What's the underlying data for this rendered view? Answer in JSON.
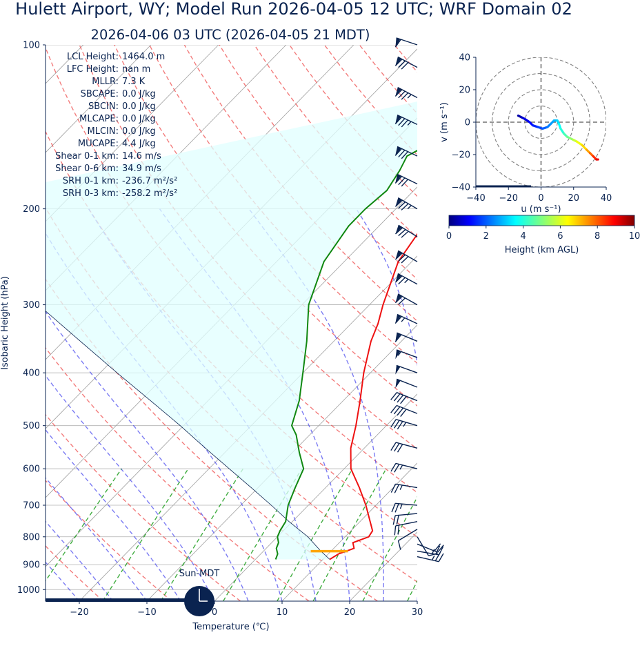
{
  "title": "Hulett Airport, WY; Model Run 2026-04-05 12 UTC; WRF Domain 02",
  "subtitle": "2026-04-06 03 UTC  (2026-04-05 21 MDT)",
  "colors": {
    "text": "#0a2350",
    "temperature": "#ee1111",
    "dewpoint": "#118811",
    "isotherm": "#a0a0a0",
    "dry_adiabat": "#ee4444",
    "moist_adiabat": "#4444ee",
    "mixing_ratio": "#119911",
    "cape_fill": "#e0ffff",
    "barb": "#0a2350",
    "lcl_marker": "#ffa500"
  },
  "indices": [
    {
      "label": "LCL Height:",
      "value": "1464.0 m"
    },
    {
      "label": "LFC Height:",
      "value": "nan m"
    },
    {
      "label": "MLLR:",
      "value": "7.3 K"
    },
    {
      "label": "SBCAPE:",
      "value": "0.0 J/kg"
    },
    {
      "label": "SBCIN:",
      "value": "0.0 J/kg"
    },
    {
      "label": "MLCAPE:",
      "value": "0.0 J/kg"
    },
    {
      "label": "MLCIN:",
      "value": "0.0 J/kg"
    },
    {
      "label": "MUCAPE:",
      "value": "4.4 J/kg"
    },
    {
      "label": "Shear 0-1 km:",
      "value": "14.6 m/s"
    },
    {
      "label": "Shear 0-6 km:",
      "value": "34.9 m/s"
    },
    {
      "label": "SRH 0-1 km:",
      "value": "-236.7 m²/s²"
    },
    {
      "label": "SRH 0-3 km:",
      "value": "-258.2 m²/s²"
    }
  ],
  "sun_label": "Sun-MDT",
  "sun_icon": "clock-icon",
  "chart_data": [
    {
      "type": "line",
      "kind": "skew-t",
      "xlabel": "Temperature (℃)",
      "ylabel": "Isobaric Height (hPa)",
      "xlim": [
        -25,
        30
      ],
      "ylim": [
        1050,
        100
      ],
      "x_ticks": [
        -20,
        -10,
        0,
        10,
        20,
        30
      ],
      "y_ticks": [
        100,
        200,
        300,
        400,
        500,
        600,
        700,
        800,
        900,
        1000
      ],
      "y_scale": "log",
      "grid": true,
      "series": [
        {
          "role": "temperature",
          "points": [
            [
              880,
              11.0
            ],
            [
              860,
              11.5
            ],
            [
              840,
              13.0
            ],
            [
              820,
              12.0
            ],
            [
              800,
              13.5
            ],
            [
              780,
              13.2
            ],
            [
              750,
              11.5
            ],
            [
              700,
              8.5
            ],
            [
              650,
              5.0
            ],
            [
              600,
              1.0
            ],
            [
              550,
              -2.0
            ],
            [
              500,
              -4.5
            ],
            [
              450,
              -7.5
            ],
            [
              400,
              -11.0
            ],
            [
              350,
              -14.5
            ],
            [
              325,
              -16.0
            ],
            [
              300,
              -18.0
            ],
            [
              250,
              -22.0
            ],
            [
              215,
              -23.5
            ],
            [
              200,
              -22.0
            ],
            [
              185,
              -20.5
            ],
            [
              165,
              -13.5
            ],
            [
              150,
              -7.0
            ],
            [
              140,
              0.0
            ],
            [
              125,
              10.0
            ],
            [
              113,
              15.0
            ],
            [
              100,
              17.0
            ]
          ]
        },
        {
          "role": "dewpoint",
          "points": [
            [
              880,
              3.0
            ],
            [
              860,
              2.5
            ],
            [
              840,
              1.5
            ],
            [
              820,
              1.0
            ],
            [
              800,
              0.0
            ],
            [
              780,
              -0.5
            ],
            [
              750,
              -1.0
            ],
            [
              700,
              -3.0
            ],
            [
              650,
              -4.5
            ],
            [
              600,
              -6.0
            ],
            [
              560,
              -9.0
            ],
            [
              520,
              -12.0
            ],
            [
              500,
              -14.0
            ],
            [
              450,
              -16.5
            ],
            [
              400,
              -20.0
            ],
            [
              350,
              -24.0
            ],
            [
              300,
              -29.0
            ],
            [
              250,
              -33.0
            ],
            [
              215,
              -34.5
            ],
            [
              200,
              -34.5
            ],
            [
              185,
              -34.0
            ],
            [
              170,
              -35.0
            ],
            [
              160,
              -36.0
            ],
            [
              150,
              -34.0
            ],
            [
              140,
              -30.0
            ],
            [
              125,
              -24.0
            ],
            [
              113,
              -18.0
            ],
            [
              100,
              -12.0
            ]
          ]
        },
        {
          "role": "parcel",
          "points": [
            [
              880,
              11.0
            ],
            [
              850,
              8.5
            ],
            [
              800,
              4.5
            ],
            [
              750,
              -0.5
            ],
            [
              700,
              -5.5
            ],
            [
              650,
              -11.0
            ],
            [
              600,
              -17.0
            ],
            [
              550,
              -23.5
            ],
            [
              500,
              -30.5
            ],
            [
              450,
              -38.5
            ],
            [
              400,
              -47.5
            ],
            [
              350,
              -57.5
            ],
            [
              300,
              -69.0
            ],
            [
              250,
              -83.0
            ],
            [
              200,
              -100.0
            ]
          ]
        }
      ],
      "lcl_pressure_hpa": 850,
      "wind_barbs": [
        {
          "p": 100,
          "u": 30,
          "v": -10
        },
        {
          "p": 110,
          "u": 37,
          "v": -20
        },
        {
          "p": 125,
          "u": 38,
          "v": -20
        },
        {
          "p": 140,
          "u": 40,
          "v": -19
        },
        {
          "p": 160,
          "u": 38,
          "v": -18
        },
        {
          "p": 180,
          "u": 37,
          "v": -18
        },
        {
          "p": 200,
          "u": 38,
          "v": -22
        },
        {
          "p": 225,
          "u": 36,
          "v": -22
        },
        {
          "p": 250,
          "u": 35,
          "v": -20
        },
        {
          "p": 275,
          "u": 33,
          "v": -18
        },
        {
          "p": 300,
          "u": 32,
          "v": -18
        },
        {
          "p": 325,
          "u": 30,
          "v": -14
        },
        {
          "p": 350,
          "u": 29,
          "v": -12
        },
        {
          "p": 375,
          "u": 27,
          "v": -10
        },
        {
          "p": 400,
          "u": 25,
          "v": -9
        },
        {
          "p": 425,
          "u": 23,
          "v": -9
        },
        {
          "p": 450,
          "u": 20,
          "v": -8
        },
        {
          "p": 475,
          "u": 18,
          "v": -7
        },
        {
          "p": 500,
          "u": 17,
          "v": -5
        },
        {
          "p": 550,
          "u": 15,
          "v": -4
        },
        {
          "p": 600,
          "u": 12,
          "v": -3
        },
        {
          "p": 650,
          "u": 12,
          "v": -2
        },
        {
          "p": 700,
          "u": 12,
          "v": -1
        },
        {
          "p": 725,
          "u": 11,
          "v": 1
        },
        {
          "p": 750,
          "u": 10,
          "v": 2
        },
        {
          "p": 775,
          "u": 5,
          "v": 3
        },
        {
          "p": 800,
          "u": -3,
          "v": 5
        },
        {
          "p": 825,
          "u": -10,
          "v": 4
        },
        {
          "p": 850,
          "u": -12,
          "v": 2
        },
        {
          "p": 870,
          "u": -13,
          "v": 3
        }
      ]
    },
    {
      "type": "line",
      "kind": "hodograph",
      "xlabel": "u (m s⁻¹)",
      "ylabel": "v (m s⁻¹)",
      "xlim": [
        -40,
        40
      ],
      "ylim": [
        -40,
        40
      ],
      "x_ticks": [
        -40,
        -20,
        0,
        20,
        40
      ],
      "y_ticks": [
        -40,
        -20,
        0,
        20,
        40
      ],
      "rings": [
        10,
        20,
        30,
        40
      ],
      "colorbar": {
        "label": "Height (km AGL)",
        "ticks": [
          0,
          2,
          4,
          6,
          8,
          10
        ],
        "range": [
          0,
          10
        ],
        "colormap": "jet"
      },
      "points": [
        {
          "u": -14,
          "v": 4,
          "h": 0.2
        },
        {
          "u": -12,
          "v": 3,
          "h": 0.5
        },
        {
          "u": -10,
          "v": 2,
          "h": 0.8
        },
        {
          "u": -7,
          "v": 0,
          "h": 1.0
        },
        {
          "u": -5,
          "v": -2,
          "h": 1.3
        },
        {
          "u": -2,
          "v": -3,
          "h": 1.6
        },
        {
          "u": 1,
          "v": -4,
          "h": 1.9
        },
        {
          "u": 4,
          "v": -3,
          "h": 2.2
        },
        {
          "u": 6,
          "v": -1,
          "h": 2.5
        },
        {
          "u": 8,
          "v": 1,
          "h": 2.8
        },
        {
          "u": 10,
          "v": 1,
          "h": 3.1
        },
        {
          "u": 11,
          "v": -1,
          "h": 3.4
        },
        {
          "u": 12,
          "v": -4,
          "h": 3.8
        },
        {
          "u": 14,
          "v": -7,
          "h": 4.2
        },
        {
          "u": 16,
          "v": -9,
          "h": 4.6
        },
        {
          "u": 18,
          "v": -10,
          "h": 5.0
        },
        {
          "u": 20,
          "v": -11,
          "h": 5.5
        },
        {
          "u": 22,
          "v": -12,
          "h": 6.0
        },
        {
          "u": 25,
          "v": -14,
          "h": 6.5
        },
        {
          "u": 28,
          "v": -17,
          "h": 7.0
        },
        {
          "u": 30,
          "v": -19,
          "h": 7.6
        },
        {
          "u": 32,
          "v": -21,
          "h": 8.2
        },
        {
          "u": 34,
          "v": -23,
          "h": 8.8
        },
        {
          "u": 35,
          "v": -23,
          "h": 9.3
        }
      ]
    }
  ]
}
